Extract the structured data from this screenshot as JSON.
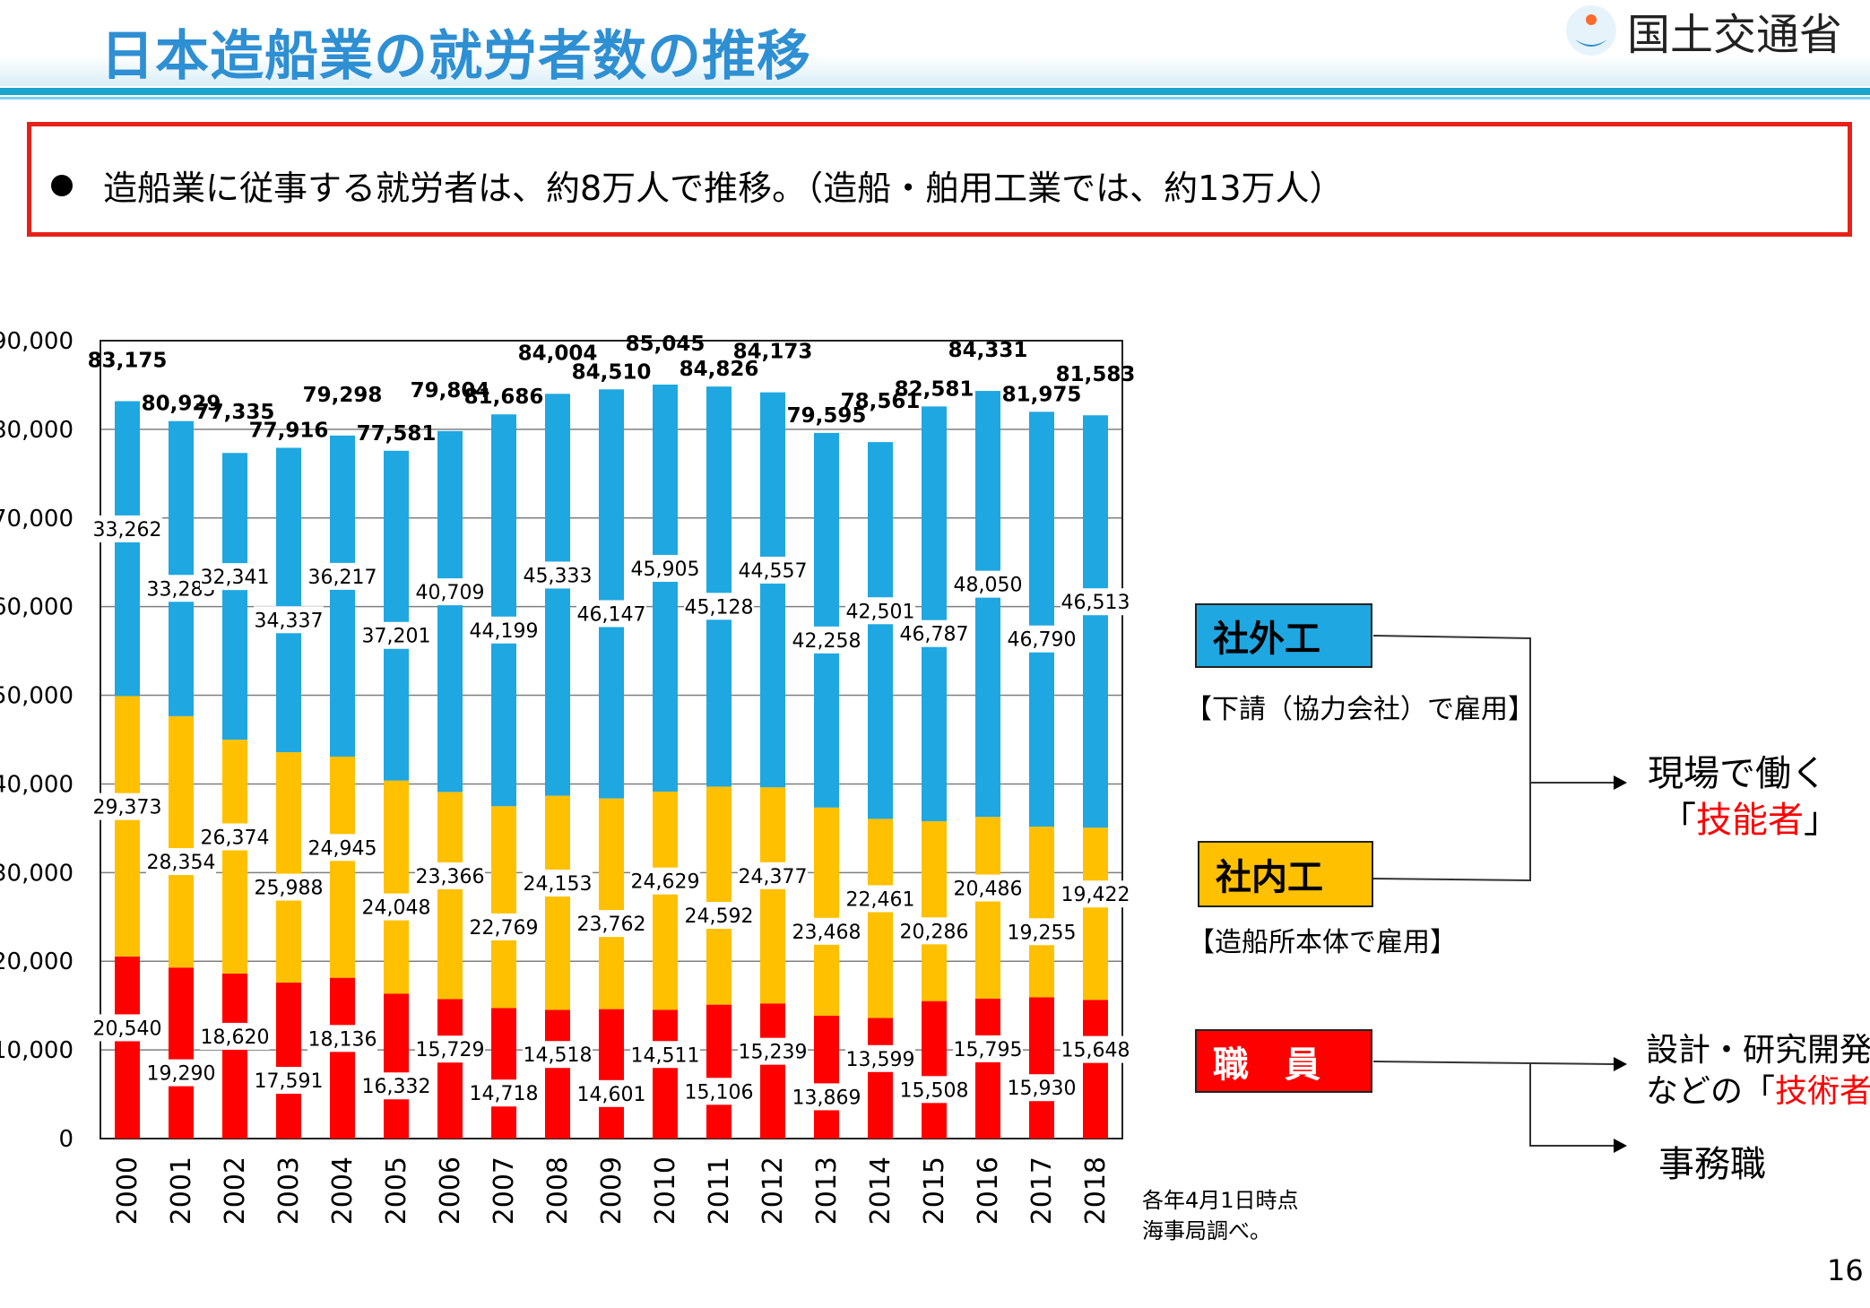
{
  "header": {
    "title": "日本造船業の就労者数の推移",
    "ministry_name": "国土交通省"
  },
  "summary": {
    "text": "造船業に従事する就労者は、約8万人で推移。（造船・舶用工業では、約13万人）"
  },
  "colors": {
    "outsourced": "#1fa7e1",
    "inhouse": "#ffc000",
    "staff": "#ff0000",
    "header_blue": "#2e8fd3",
    "summary_border": "#e8201a"
  },
  "chart_data": {
    "type": "bar",
    "stacked": true,
    "categories": [
      "2000",
      "2001",
      "2002",
      "2003",
      "2004",
      "2005",
      "2006",
      "2007",
      "2008",
      "2009",
      "2010",
      "2011",
      "2012",
      "2013",
      "2014",
      "2015",
      "2016",
      "2017",
      "2018"
    ],
    "series": [
      {
        "name": "職員",
        "color": "#ff0000",
        "values": [
          20540,
          19290,
          18620,
          17591,
          18136,
          16332,
          15729,
          14718,
          14518,
          14601,
          14511,
          15106,
          15239,
          13869,
          13599,
          15508,
          15795,
          15930,
          15648
        ]
      },
      {
        "name": "社内工",
        "color": "#ffc000",
        "values": [
          29373,
          28354,
          26374,
          25988,
          24945,
          24048,
          23366,
          22769,
          24153,
          23762,
          24629,
          24592,
          24377,
          23468,
          22461,
          20286,
          20486,
          19255,
          19422
        ]
      },
      {
        "name": "社外工",
        "color": "#1fa7e1",
        "values": [
          33262,
          33285,
          32341,
          34337,
          36217,
          37201,
          40709,
          44199,
          45333,
          46147,
          45905,
          45128,
          44557,
          42258,
          42501,
          46787,
          48050,
          46790,
          46513
        ]
      }
    ],
    "totals": [
      83175,
      80929,
      77335,
      77916,
      79298,
      77581,
      79804,
      81686,
      84004,
      84510,
      85045,
      84826,
      84173,
      79595,
      78561,
      82581,
      84331,
      81975,
      81583
    ],
    "series_labels": [
      [
        "20,540",
        "19,290",
        "18,620",
        "17,591",
        "18,136",
        "16,332",
        "15,729",
        "14,718",
        "14,518",
        "14,601",
        "14,511",
        "15,106",
        "15,239",
        "13,869",
        "13,599",
        "15,508",
        "15,795",
        "15,930",
        "15,648"
      ],
      [
        "29,373",
        "28,354",
        "26,374",
        "25,988",
        "24,945",
        "24,048",
        "23,366",
        "22,769",
        "24,153",
        "23,762",
        "24,629",
        "24,592",
        "24,377",
        "23,468",
        "22,461",
        "20,286",
        "20,486",
        "19,255",
        "19,422"
      ],
      [
        "33,262",
        "33,285",
        "32,341",
        "34,337",
        "36,217",
        "37,201",
        "40,709",
        "44,199",
        "45,333",
        "46,147",
        "45,905",
        "45,128",
        "44,557",
        "42,258",
        "42,501",
        "46,787",
        "48,050",
        "46,790",
        "46,513"
      ]
    ],
    "total_labels": [
      "83,175",
      "80,929",
      "77,335",
      "77,916",
      "79,298",
      "77,581",
      "79,804",
      "81,686",
      "84,004",
      "84,510",
      "85,045",
      "84,826",
      "84,173",
      "79,595",
      "78,561",
      "82,581",
      "84,331",
      "81,975",
      "81,583"
    ],
    "yticks": [
      0,
      10000,
      20000,
      30000,
      40000,
      50000,
      60000,
      70000,
      80000,
      90000
    ],
    "ytick_labels": [
      "0",
      "10,000",
      "20,000",
      "30,000",
      "40,000",
      "50,000",
      "60,000",
      "70,000",
      "80,000",
      "90,000"
    ],
    "ylim": [
      0,
      90000
    ],
    "grid": true,
    "title": "",
    "xlabel": "",
    "ylabel": ""
  },
  "legend": {
    "outsourced_label": "社外工",
    "outsourced_note": "【下請（協力会社）で雇用】",
    "inhouse_label": "社内工",
    "inhouse_note": "【造船所本体で雇用】",
    "staff_label": "職　員"
  },
  "classification": {
    "skilled_line1": "現場で働く",
    "skilled_open": "「",
    "skilled_term": "技能者",
    "skilled_close": "」",
    "engineer_line1": "設計・研究開発",
    "engineer_prefix": "などの「",
    "engineer_term": "技術者",
    "engineer_close": "」",
    "clerical": "事務職"
  },
  "footnote": {
    "line1": "各年4月1日時点",
    "line2": "海事局調べ。"
  },
  "page_number": "16"
}
